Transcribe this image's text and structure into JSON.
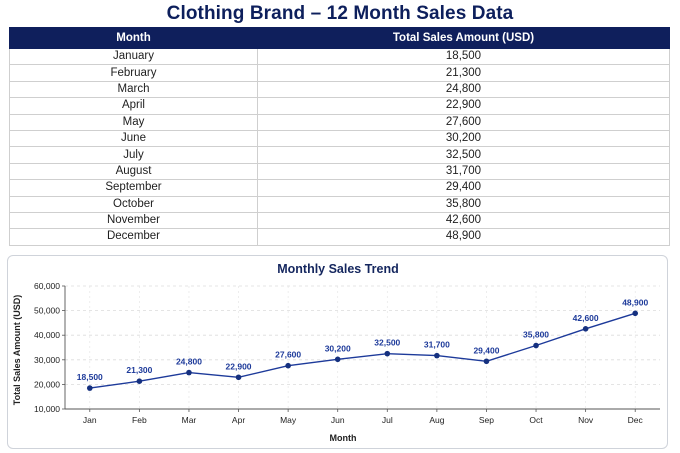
{
  "page": {
    "title": "Clothing Brand – 12 Month Sales Data"
  },
  "table": {
    "headers": [
      "Month",
      "Total Sales Amount (USD)"
    ],
    "rows": [
      [
        "January",
        "18,500"
      ],
      [
        "February",
        "21,300"
      ],
      [
        "March",
        "24,800"
      ],
      [
        "April",
        "22,900"
      ],
      [
        "May",
        "27,600"
      ],
      [
        "June",
        "30,200"
      ],
      [
        "July",
        "32,500"
      ],
      [
        "August",
        "31,700"
      ],
      [
        "September",
        "29,400"
      ],
      [
        "October",
        "35,800"
      ],
      [
        "November",
        "42,600"
      ],
      [
        "December",
        "48,900"
      ]
    ]
  },
  "colors": {
    "header_bg": "#0f1f5c",
    "line": "#1d3a9a",
    "marker": "#15307f"
  },
  "chart_data": {
    "type": "line",
    "title": "Monthly Sales Trend",
    "xlabel": "Month",
    "ylabel": "Total Sales Amount (USD)",
    "categories": [
      "Jan",
      "Feb",
      "Mar",
      "Apr",
      "May",
      "Jun",
      "Jul",
      "Aug",
      "Sep",
      "Oct",
      "Nov",
      "Dec"
    ],
    "series": [
      {
        "values": [
          18500,
          21300,
          24800,
          22900,
          27600,
          30200,
          32500,
          31700,
          29400,
          35800,
          42600,
          48900
        ]
      }
    ],
    "data_labels": [
      "18,500",
      "21,300",
      "24,800",
      "22,900",
      "27,600",
      "30,200",
      "32,500",
      "31,700",
      "29,400",
      "35,800",
      "42,600",
      "48,900"
    ],
    "ylim": [
      10000,
      60000
    ],
    "yticks": [
      10000,
      20000,
      30000,
      40000,
      50000,
      60000
    ],
    "ytick_labels": [
      "10,000",
      "20,000",
      "30,000",
      "40,000",
      "50,000",
      "60,000"
    ],
    "grid": true,
    "legend": "none"
  }
}
